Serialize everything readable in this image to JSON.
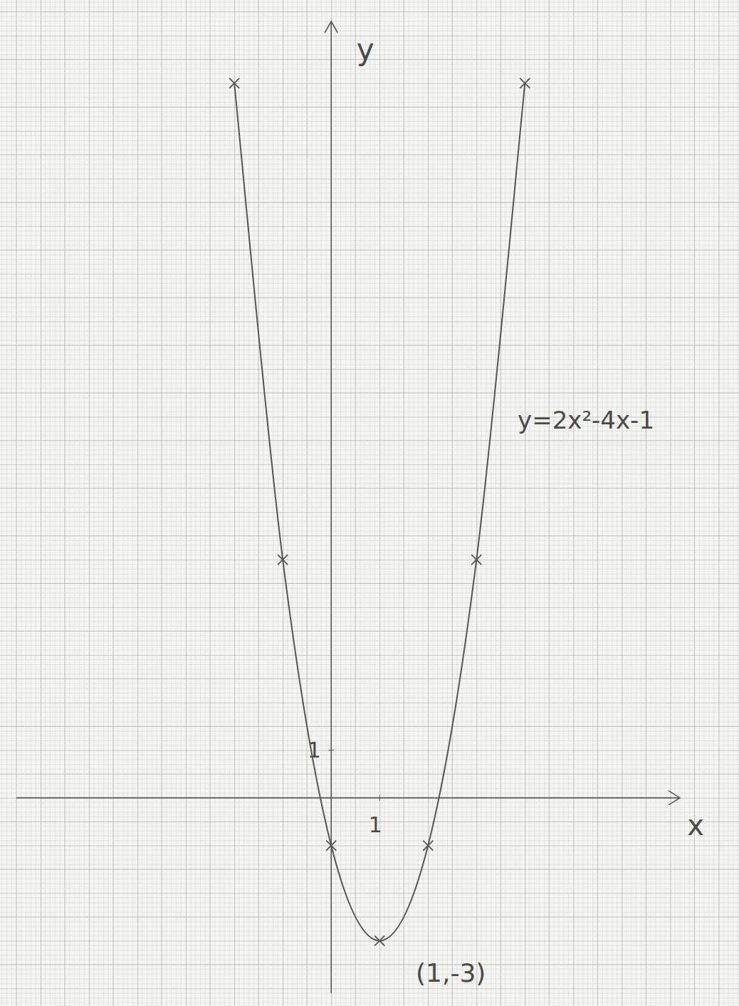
{
  "chart_data": {
    "type": "line",
    "x_label": "x",
    "y_label": "y",
    "xlim": [
      -6.5,
      7.2
    ],
    "ylim": [
      -4.1,
      16.3
    ],
    "xticks": [
      1
    ],
    "yticks": [
      1
    ],
    "grid": true,
    "x": [
      -2,
      -1,
      0,
      1,
      2,
      3,
      4
    ],
    "series": [
      {
        "name": "y=2x²-4x-1",
        "color": "#555555",
        "marker": "x",
        "line_style": "solid",
        "values": [
          15,
          5,
          -1,
          -3,
          -1,
          5,
          15
        ]
      }
    ],
    "annotations": [
      {
        "text": "(1,-3)",
        "x": 1,
        "y": -3
      }
    ]
  }
}
